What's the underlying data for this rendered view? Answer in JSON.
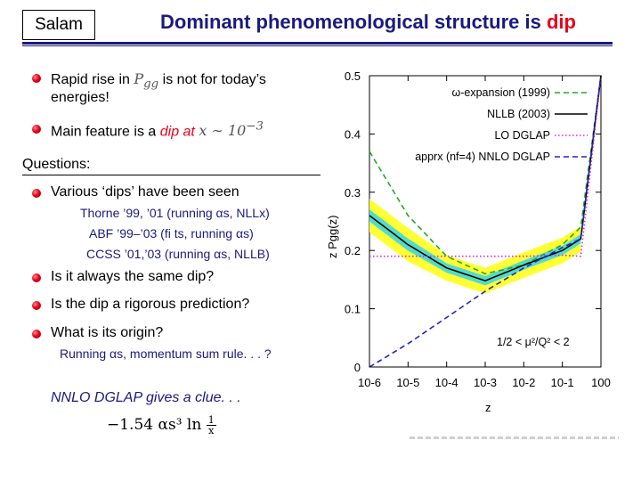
{
  "header": {
    "author": "Salam",
    "title_prefix": "Dominant phenomenological structure is ",
    "title_highlight": "dip"
  },
  "bullets": [
    {
      "line1_prefix": "Rapid rise in ",
      "line1_math": "P",
      "line1_math_sub": "gg",
      "line1_suffix": " is not for today’s",
      "line2": "energies!"
    },
    {
      "prefix": "Main feature is a ",
      "highlight": "dip at ",
      "math": "x ∼ 10",
      "math_sup": "−3"
    }
  ],
  "questions": {
    "heading": "Questions:",
    "items": [
      {
        "text": "Various ‘dips’ have been seen"
      },
      {
        "text": "Is it always the same dip?"
      },
      {
        "text": "Is the dip a rigorous prediction?"
      },
      {
        "text": "What is its origin?"
      }
    ],
    "refs": [
      {
        "text": "Thorne ’99, ’01 (running αs, NLLx)"
      },
      {
        "text": "ABF ’99–’03 (fi ts, running αs)"
      },
      {
        "text": "CCSS ’01,’03 (running αs, NLLB)"
      }
    ],
    "origin_note": "Running αs, momentum sum rule. . . ?"
  },
  "clue": "NNLO DGLAP gives a clue. . .",
  "formula": {
    "text": "−1.54 αs³ ln",
    "num": "1",
    "den": "x"
  },
  "chart_data": {
    "type": "line",
    "xlabel": "z",
    "ylabel": "z Pgg(z)",
    "xscale": "log",
    "xlim": [
      1e-06,
      1
    ],
    "ylim": [
      0,
      0.5
    ],
    "xticks": [
      "10-6",
      "10-5",
      "10-4",
      "10-3",
      "10-2",
      "10-1",
      "100"
    ],
    "yticks": [
      "0",
      "0.1",
      "0.2",
      "0.3",
      "0.4",
      "0.5"
    ],
    "annotation": "1/2 < μ²/Q² < 2",
    "legend_position": "top-right",
    "series": [
      {
        "name": "ω-expansion (1999)",
        "color": "#22aa22",
        "style": "dashed",
        "x": [
          1e-06,
          1e-05,
          0.0001,
          0.001,
          0.01,
          0.1,
          0.3,
          1
        ],
        "y": [
          0.37,
          0.26,
          0.19,
          0.16,
          0.175,
          0.21,
          0.24,
          0.5
        ]
      },
      {
        "name": "NLLB (2003)",
        "color": "#000000",
        "style": "solid",
        "x": [
          1e-06,
          1e-05,
          0.0001,
          0.001,
          0.01,
          0.1,
          0.3,
          1
        ],
        "y": [
          0.26,
          0.21,
          0.17,
          0.148,
          0.175,
          0.2,
          0.22,
          0.5
        ]
      },
      {
        "name": "LO DGLAP",
        "color": "#dd22dd",
        "style": "dotted",
        "x": [
          1e-06,
          1e-05,
          0.0001,
          0.001,
          0.01,
          0.1,
          0.3,
          1
        ],
        "y": [
          0.19,
          0.19,
          0.19,
          0.19,
          0.19,
          0.192,
          0.19,
          0.5
        ]
      },
      {
        "name": "apprx (nf=4) NNLO DGLAP",
        "color": "#2222cc",
        "style": "dashed",
        "x": [
          1e-06,
          1e-05,
          0.0001,
          0.001,
          0.01,
          0.1,
          0.3,
          1
        ],
        "y": [
          0.0,
          0.04,
          0.085,
          0.13,
          0.17,
          0.205,
          0.22,
          0.5
        ]
      }
    ]
  }
}
